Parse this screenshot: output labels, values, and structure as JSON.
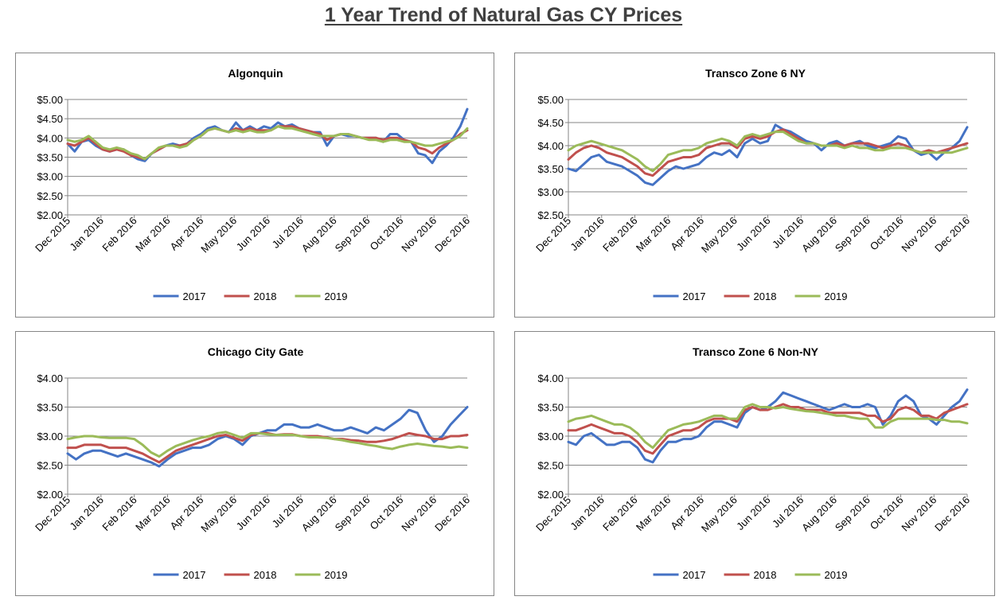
{
  "page_title": "1 Year Trend of Natural Gas CY Prices",
  "colors": {
    "2017": "#4472c4",
    "2018": "#c0504d",
    "2019": "#9bbb59"
  },
  "chart_data": [
    {
      "type": "line",
      "title": "Algonquin",
      "xlabel": "",
      "ylabel": "",
      "x_ticks": [
        "Dec 2015",
        "Jan 2016",
        "Feb 2016",
        "Mar 2016",
        "Apr 2016",
        "May 2016",
        "Jun 2016",
        "Jul 2016",
        "Aug 2016",
        "Sep 2016",
        "Oct 2016",
        "Nov 2016",
        "Dec 2016"
      ],
      "y_ticks": [
        "$5.00",
        "$4.50",
        "$4.00",
        "$3.50",
        "$3.00",
        "$2.50",
        "$2.00"
      ],
      "ylim": [
        2.0,
        5.0
      ],
      "grid": true,
      "legend": "bottom",
      "series": [
        {
          "name": "2017",
          "values": [
            3.85,
            3.65,
            3.9,
            3.95,
            3.8,
            3.7,
            3.65,
            3.7,
            3.7,
            3.55,
            3.45,
            3.4,
            3.6,
            3.7,
            3.8,
            3.85,
            3.8,
            3.85,
            4.0,
            4.1,
            4.25,
            4.3,
            4.2,
            4.15,
            4.4,
            4.2,
            4.3,
            4.2,
            4.3,
            4.25,
            4.4,
            4.3,
            4.35,
            4.25,
            4.2,
            4.15,
            4.15,
            3.8,
            4.05,
            4.1,
            4.05,
            4.05,
            4.0,
            4.0,
            4.0,
            3.9,
            4.1,
            4.1,
            3.95,
            3.9,
            3.6,
            3.55,
            3.35,
            3.65,
            3.8,
            4.0,
            4.3,
            4.75
          ]
        },
        {
          "name": "2018",
          "values": [
            3.85,
            3.8,
            3.9,
            4.0,
            3.85,
            3.7,
            3.65,
            3.7,
            3.65,
            3.55,
            3.5,
            3.45,
            3.6,
            3.7,
            3.8,
            3.8,
            3.8,
            3.85,
            3.95,
            4.05,
            4.2,
            4.25,
            4.2,
            4.15,
            4.25,
            4.2,
            4.25,
            4.2,
            4.2,
            4.2,
            4.3,
            4.3,
            4.3,
            4.25,
            4.2,
            4.15,
            4.1,
            3.95,
            4.05,
            4.1,
            4.1,
            4.05,
            4.0,
            4.0,
            4.0,
            3.95,
            4.0,
            4.0,
            3.95,
            3.9,
            3.75,
            3.7,
            3.6,
            3.75,
            3.85,
            3.95,
            4.1,
            4.2
          ]
        },
        {
          "name": "2019",
          "values": [
            3.95,
            3.9,
            3.95,
            4.05,
            3.9,
            3.75,
            3.7,
            3.75,
            3.7,
            3.6,
            3.55,
            3.45,
            3.6,
            3.75,
            3.8,
            3.8,
            3.75,
            3.8,
            3.95,
            4.05,
            4.2,
            4.25,
            4.2,
            4.15,
            4.2,
            4.15,
            4.2,
            4.15,
            4.15,
            4.2,
            4.3,
            4.25,
            4.25,
            4.2,
            4.15,
            4.1,
            4.05,
            4.05,
            4.05,
            4.1,
            4.1,
            4.05,
            4.0,
            3.95,
            3.95,
            3.9,
            3.95,
            3.95,
            3.9,
            3.9,
            3.85,
            3.8,
            3.8,
            3.85,
            3.9,
            3.95,
            4.05,
            4.25
          ]
        }
      ]
    },
    {
      "type": "line",
      "title": "Transco Zone 6 NY",
      "xlabel": "",
      "ylabel": "",
      "x_ticks": [
        "Dec 2015",
        "Jan 2016",
        "Feb 2016",
        "Mar 2016",
        "Apr 2016",
        "May 2016",
        "Jun 2016",
        "Jul 2016",
        "Aug 2016",
        "Sep 2016",
        "Oct 2016",
        "Nov 2016",
        "Dec 2016"
      ],
      "y_ticks": [
        "$5.00",
        "$4.50",
        "$4.00",
        "$3.50",
        "$3.00",
        "$2.50"
      ],
      "ylim": [
        2.5,
        5.0
      ],
      "grid": true,
      "legend": "bottom",
      "series": [
        {
          "name": "2017",
          "values": [
            3.5,
            3.45,
            3.6,
            3.75,
            3.8,
            3.65,
            3.6,
            3.55,
            3.45,
            3.35,
            3.2,
            3.15,
            3.3,
            3.45,
            3.55,
            3.5,
            3.55,
            3.6,
            3.75,
            3.85,
            3.8,
            3.9,
            3.75,
            4.05,
            4.15,
            4.05,
            4.1,
            4.45,
            4.35,
            4.3,
            4.2,
            4.1,
            4.05,
            3.9,
            4.05,
            4.1,
            4.0,
            4.05,
            4.1,
            4.0,
            3.95,
            4.0,
            4.05,
            4.2,
            4.15,
            3.9,
            3.8,
            3.85,
            3.7,
            3.85,
            3.95,
            4.1,
            4.4
          ]
        },
        {
          "name": "2018",
          "values": [
            3.7,
            3.85,
            3.95,
            4.0,
            3.95,
            3.85,
            3.8,
            3.75,
            3.65,
            3.55,
            3.4,
            3.35,
            3.5,
            3.65,
            3.7,
            3.75,
            3.75,
            3.8,
            3.95,
            4.0,
            4.05,
            4.05,
            3.95,
            4.15,
            4.2,
            4.15,
            4.2,
            4.3,
            4.35,
            4.25,
            4.15,
            4.05,
            4.05,
            4.0,
            4.0,
            4.05,
            4.0,
            4.05,
            4.05,
            4.05,
            4.0,
            3.95,
            4.0,
            4.05,
            4.0,
            3.9,
            3.85,
            3.9,
            3.85,
            3.9,
            3.95,
            4.0,
            4.05
          ]
        },
        {
          "name": "2019",
          "values": [
            3.9,
            4.0,
            4.05,
            4.1,
            4.05,
            4.0,
            3.95,
            3.9,
            3.8,
            3.7,
            3.55,
            3.45,
            3.6,
            3.8,
            3.85,
            3.9,
            3.9,
            3.95,
            4.05,
            4.1,
            4.15,
            4.1,
            4.0,
            4.2,
            4.25,
            4.2,
            4.25,
            4.3,
            4.3,
            4.2,
            4.1,
            4.05,
            4.05,
            4.0,
            4.0,
            4.0,
            3.95,
            4.0,
            3.95,
            3.95,
            3.9,
            3.9,
            3.95,
            3.95,
            3.95,
            3.9,
            3.85,
            3.85,
            3.85,
            3.85,
            3.85,
            3.9,
            3.95
          ]
        }
      ]
    },
    {
      "type": "line",
      "title": "Chicago City Gate",
      "xlabel": "",
      "ylabel": "",
      "x_ticks": [
        "Dec 2015",
        "Jan 2016",
        "Feb 2016",
        "Mar 2016",
        "Apr 2016",
        "May 2016",
        "Jun 2016",
        "Jul 2016",
        "Aug 2016",
        "Sep 2016",
        "Oct 2016",
        "Nov 2016",
        "Dec 2016"
      ],
      "y_ticks": [
        "$4.00",
        "$3.50",
        "$3.00",
        "$2.50",
        "$2.00"
      ],
      "ylim": [
        2.0,
        4.0
      ],
      "grid": true,
      "legend": "bottom",
      "series": [
        {
          "name": "2017",
          "values": [
            2.7,
            2.6,
            2.7,
            2.75,
            2.75,
            2.7,
            2.65,
            2.7,
            2.65,
            2.6,
            2.55,
            2.48,
            2.6,
            2.7,
            2.75,
            2.8,
            2.8,
            2.85,
            2.95,
            3.0,
            2.95,
            2.85,
            3.0,
            3.05,
            3.1,
            3.1,
            3.2,
            3.2,
            3.15,
            3.15,
            3.2,
            3.15,
            3.1,
            3.1,
            3.15,
            3.1,
            3.05,
            3.15,
            3.1,
            3.2,
            3.3,
            3.45,
            3.4,
            3.1,
            2.9,
            3.0,
            3.2,
            3.35,
            3.5
          ]
        },
        {
          "name": "2018",
          "values": [
            2.8,
            2.8,
            2.85,
            2.85,
            2.85,
            2.8,
            2.8,
            2.8,
            2.75,
            2.7,
            2.62,
            2.55,
            2.65,
            2.75,
            2.8,
            2.85,
            2.9,
            2.95,
            3.0,
            3.02,
            2.97,
            2.92,
            3.02,
            3.05,
            3.05,
            3.02,
            3.03,
            3.03,
            3.0,
            3.0,
            3.0,
            2.98,
            2.95,
            2.95,
            2.93,
            2.92,
            2.9,
            2.9,
            2.92,
            2.95,
            3.0,
            3.05,
            3.02,
            3.0,
            2.95,
            2.95,
            3.0,
            3.0,
            3.02
          ]
        },
        {
          "name": "2019",
          "values": [
            2.95,
            2.98,
            3.0,
            3.0,
            2.98,
            2.97,
            2.97,
            2.97,
            2.95,
            2.85,
            2.72,
            2.65,
            2.75,
            2.83,
            2.88,
            2.93,
            2.97,
            3.0,
            3.05,
            3.07,
            3.02,
            2.97,
            3.05,
            3.05,
            3.03,
            3.02,
            3.02,
            3.02,
            3.0,
            2.98,
            2.98,
            2.97,
            2.95,
            2.93,
            2.9,
            2.88,
            2.85,
            2.83,
            2.8,
            2.78,
            2.82,
            2.85,
            2.87,
            2.85,
            2.83,
            2.82,
            2.8,
            2.82,
            2.8
          ]
        }
      ]
    },
    {
      "type": "line",
      "title": "Transco Zone 6 Non-NY",
      "xlabel": "",
      "ylabel": "",
      "x_ticks": [
        "Dec 2015",
        "Jan 2016",
        "Feb 2016",
        "Mar 2016",
        "Apr 2016",
        "May 2016",
        "Jun 2016",
        "Jul 2016",
        "Aug 2016",
        "Sep 2016",
        "Oct 2016",
        "Nov 2016",
        "Dec 2016"
      ],
      "y_ticks": [
        "$4.00",
        "$3.50",
        "$3.00",
        "$2.50",
        "$2.00"
      ],
      "ylim": [
        2.0,
        4.0
      ],
      "grid": true,
      "legend": "bottom",
      "series": [
        {
          "name": "2017",
          "values": [
            2.9,
            2.85,
            3.0,
            3.05,
            2.95,
            2.85,
            2.85,
            2.9,
            2.9,
            2.8,
            2.6,
            2.55,
            2.75,
            2.9,
            2.9,
            2.95,
            2.95,
            3.0,
            3.15,
            3.25,
            3.25,
            3.2,
            3.15,
            3.4,
            3.5,
            3.45,
            3.5,
            3.6,
            3.75,
            3.7,
            3.65,
            3.6,
            3.55,
            3.5,
            3.45,
            3.5,
            3.55,
            3.5,
            3.5,
            3.55,
            3.5,
            3.2,
            3.35,
            3.6,
            3.7,
            3.6,
            3.35,
            3.3,
            3.2,
            3.35,
            3.5,
            3.6,
            3.8
          ]
        },
        {
          "name": "2018",
          "values": [
            3.1,
            3.1,
            3.15,
            3.2,
            3.15,
            3.1,
            3.05,
            3.05,
            3.0,
            2.9,
            2.75,
            2.7,
            2.85,
            3.0,
            3.05,
            3.1,
            3.1,
            3.15,
            3.25,
            3.3,
            3.3,
            3.3,
            3.25,
            3.45,
            3.5,
            3.45,
            3.45,
            3.5,
            3.55,
            3.5,
            3.5,
            3.45,
            3.45,
            3.45,
            3.4,
            3.4,
            3.4,
            3.4,
            3.4,
            3.35,
            3.35,
            3.25,
            3.3,
            3.45,
            3.5,
            3.45,
            3.35,
            3.35,
            3.3,
            3.4,
            3.45,
            3.5,
            3.55
          ]
        },
        {
          "name": "2019",
          "values": [
            3.25,
            3.3,
            3.32,
            3.35,
            3.3,
            3.25,
            3.2,
            3.2,
            3.15,
            3.05,
            2.9,
            2.8,
            2.95,
            3.1,
            3.15,
            3.2,
            3.22,
            3.25,
            3.3,
            3.35,
            3.35,
            3.3,
            3.3,
            3.5,
            3.55,
            3.5,
            3.5,
            3.48,
            3.5,
            3.47,
            3.45,
            3.43,
            3.42,
            3.4,
            3.38,
            3.35,
            3.35,
            3.32,
            3.3,
            3.3,
            3.15,
            3.15,
            3.25,
            3.3,
            3.3,
            3.3,
            3.3,
            3.3,
            3.28,
            3.28,
            3.25,
            3.25,
            3.22
          ]
        }
      ]
    }
  ]
}
